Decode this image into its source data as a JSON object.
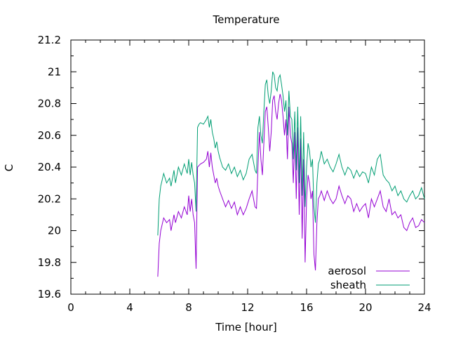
{
  "chart_data": {
    "type": "line",
    "title": "Temperature",
    "xlabel": "Time [hour]",
    "ylabel": "C",
    "xlim": [
      0,
      24
    ],
    "ylim": [
      19.6,
      21.2
    ],
    "xticks": [
      0,
      4,
      8,
      12,
      16,
      20,
      24
    ],
    "xtick_labels": [
      "0",
      "4",
      "8",
      "12",
      "16",
      "20",
      "24"
    ],
    "yticks": [
      19.6,
      19.8,
      20,
      20.2,
      20.4,
      20.6,
      20.8,
      21,
      21.2
    ],
    "ytick_labels": [
      "19.6",
      "19.8",
      "20",
      "20.2",
      "20.4",
      "20.6",
      "20.8",
      "21",
      "21.2"
    ],
    "grid": false,
    "legend_position": "bottom-right",
    "series": [
      {
        "name": "aerosol",
        "color": "#9400d3",
        "x": [
          5.9,
          6.0,
          6.1,
          6.2,
          6.3,
          6.5,
          6.7,
          6.8,
          7.0,
          7.1,
          7.3,
          7.5,
          7.7,
          7.9,
          8.0,
          8.1,
          8.2,
          8.3,
          8.4,
          8.5,
          8.6,
          8.7,
          8.8,
          9.0,
          9.2,
          9.3,
          9.4,
          9.5,
          9.6,
          9.7,
          9.8,
          9.9,
          10.0,
          10.1,
          10.3,
          10.5,
          10.7,
          10.9,
          11.1,
          11.3,
          11.5,
          11.7,
          11.9,
          12.1,
          12.3,
          12.5,
          12.6,
          12.7,
          12.8,
          12.9,
          13.0,
          13.1,
          13.2,
          13.3,
          13.4,
          13.5,
          13.6,
          13.7,
          13.8,
          13.9,
          14.0,
          14.1,
          14.2,
          14.3,
          14.4,
          14.5,
          14.6,
          14.7,
          14.8,
          14.9,
          15.0,
          15.1,
          15.2,
          15.3,
          15.4,
          15.5,
          15.6,
          15.7,
          15.8,
          15.9,
          16.0,
          16.1,
          16.2,
          16.3,
          16.4,
          16.5,
          16.6,
          16.7,
          16.8,
          16.9,
          17.0,
          17.2,
          17.4,
          17.6,
          17.8,
          18.0,
          18.2,
          18.4,
          18.6,
          18.8,
          19.0,
          19.2,
          19.4,
          19.6,
          19.8,
          20.0,
          20.2,
          20.4,
          20.6,
          20.8,
          21.0,
          21.2,
          21.4,
          21.6,
          21.8,
          22.0,
          22.2,
          22.4,
          22.6,
          22.8,
          23.0,
          23.2,
          23.4,
          23.6,
          23.8,
          24.0
        ],
        "y": [
          19.71,
          19.92,
          20.0,
          20.04,
          20.08,
          20.05,
          20.07,
          20.0,
          20.1,
          20.05,
          20.12,
          20.08,
          20.15,
          20.1,
          20.22,
          20.12,
          20.2,
          20.1,
          20.05,
          19.76,
          20.4,
          20.41,
          20.42,
          20.43,
          20.45,
          20.5,
          20.4,
          20.49,
          20.4,
          20.35,
          20.3,
          20.33,
          20.28,
          20.25,
          20.2,
          20.15,
          20.19,
          20.14,
          20.18,
          20.1,
          20.15,
          20.1,
          20.14,
          20.2,
          20.25,
          20.15,
          20.14,
          20.4,
          20.62,
          20.45,
          20.35,
          20.55,
          20.75,
          20.78,
          20.65,
          20.5,
          20.62,
          20.82,
          20.85,
          20.75,
          20.7,
          20.8,
          20.86,
          20.82,
          20.72,
          20.6,
          20.7,
          20.45,
          20.78,
          20.6,
          20.55,
          20.3,
          20.62,
          20.2,
          20.65,
          20.1,
          20.58,
          19.95,
          20.45,
          19.8,
          20.2,
          20.35,
          20.3,
          20.2,
          20.25,
          19.85,
          19.75,
          20.05,
          20.2,
          20.22,
          20.25,
          20.19,
          20.25,
          20.2,
          20.17,
          20.2,
          20.28,
          20.22,
          20.17,
          20.22,
          20.2,
          20.12,
          20.17,
          20.12,
          20.15,
          20.17,
          20.08,
          20.2,
          20.15,
          20.2,
          20.25,
          20.15,
          20.12,
          20.2,
          20.1,
          20.12,
          20.08,
          20.1,
          20.02,
          20.0,
          20.05,
          20.08,
          20.02,
          20.03,
          20.07,
          20.05
        ]
      },
      {
        "name": "sheath",
        "color": "#009e73",
        "x": [
          5.9,
          6.0,
          6.1,
          6.2,
          6.3,
          6.5,
          6.7,
          6.8,
          7.0,
          7.1,
          7.3,
          7.5,
          7.7,
          7.9,
          8.0,
          8.1,
          8.2,
          8.3,
          8.4,
          8.5,
          8.6,
          8.7,
          8.8,
          9.0,
          9.2,
          9.3,
          9.4,
          9.5,
          9.6,
          9.7,
          9.8,
          9.9,
          10.0,
          10.1,
          10.3,
          10.5,
          10.7,
          10.9,
          11.1,
          11.3,
          11.5,
          11.7,
          11.9,
          12.1,
          12.3,
          12.5,
          12.6,
          12.7,
          12.8,
          12.9,
          13.0,
          13.1,
          13.2,
          13.3,
          13.4,
          13.5,
          13.6,
          13.7,
          13.8,
          13.9,
          14.0,
          14.1,
          14.2,
          14.3,
          14.4,
          14.5,
          14.6,
          14.7,
          14.8,
          14.9,
          15.0,
          15.1,
          15.2,
          15.3,
          15.4,
          15.5,
          15.6,
          15.7,
          15.8,
          15.9,
          16.0,
          16.1,
          16.2,
          16.3,
          16.4,
          16.5,
          16.6,
          16.7,
          16.8,
          16.9,
          17.0,
          17.2,
          17.4,
          17.6,
          17.8,
          18.0,
          18.2,
          18.4,
          18.6,
          18.8,
          19.0,
          19.2,
          19.4,
          19.6,
          19.8,
          20.0,
          20.2,
          20.4,
          20.6,
          20.8,
          21.0,
          21.2,
          21.4,
          21.6,
          21.8,
          22.0,
          22.2,
          22.4,
          22.6,
          22.8,
          23.0,
          23.2,
          23.4,
          23.6,
          23.8,
          24.0
        ],
        "y": [
          19.97,
          20.2,
          20.28,
          20.32,
          20.36,
          20.3,
          20.33,
          20.28,
          20.38,
          20.3,
          20.4,
          20.35,
          20.42,
          20.36,
          20.45,
          20.35,
          20.43,
          20.35,
          20.3,
          20.12,
          20.65,
          20.67,
          20.68,
          20.67,
          20.7,
          20.72,
          20.65,
          20.7,
          20.62,
          20.58,
          20.52,
          20.56,
          20.5,
          20.46,
          20.4,
          20.38,
          20.42,
          20.36,
          20.4,
          20.34,
          20.38,
          20.32,
          20.36,
          20.45,
          20.48,
          20.38,
          20.36,
          20.65,
          20.72,
          20.6,
          20.55,
          20.75,
          20.92,
          20.95,
          20.85,
          20.8,
          20.88,
          21.0,
          20.98,
          20.9,
          20.88,
          20.96,
          20.98,
          20.92,
          20.85,
          20.75,
          20.82,
          20.6,
          20.88,
          20.72,
          20.7,
          20.45,
          20.75,
          20.38,
          20.78,
          20.3,
          20.72,
          20.22,
          20.62,
          20.15,
          20.4,
          20.55,
          20.5,
          20.4,
          20.45,
          20.15,
          20.05,
          20.3,
          20.42,
          20.45,
          20.5,
          20.42,
          20.45,
          20.4,
          20.37,
          20.42,
          20.48,
          20.4,
          20.35,
          20.4,
          20.38,
          20.33,
          20.38,
          20.34,
          20.37,
          20.36,
          20.3,
          20.4,
          20.35,
          20.45,
          20.48,
          20.35,
          20.32,
          20.3,
          20.25,
          20.28,
          20.22,
          20.25,
          20.2,
          20.18,
          20.22,
          20.25,
          20.2,
          20.22,
          20.27,
          20.2
        ]
      }
    ]
  }
}
